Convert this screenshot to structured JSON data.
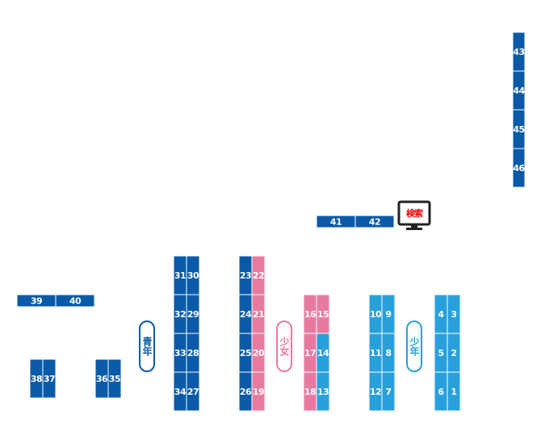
{
  "shelves": [
    "1",
    "2",
    "3",
    "4",
    "5",
    "6",
    "7",
    "8",
    "9",
    "10",
    "11",
    "12",
    "13",
    "14",
    "15",
    "16",
    "17",
    "18",
    "19",
    "20",
    "21",
    "22",
    "23",
    "24",
    "25",
    "26",
    "27",
    "28",
    "29",
    "30",
    "31",
    "32",
    "33",
    "34",
    "35",
    "36",
    "37",
    "38",
    "39",
    "40",
    "41",
    "42",
    "43",
    "44",
    "45",
    "46"
  ],
  "sections": {
    "seinen": "青年",
    "shoujo": "少女",
    "shounen": "少年"
  },
  "search": "検索"
}
